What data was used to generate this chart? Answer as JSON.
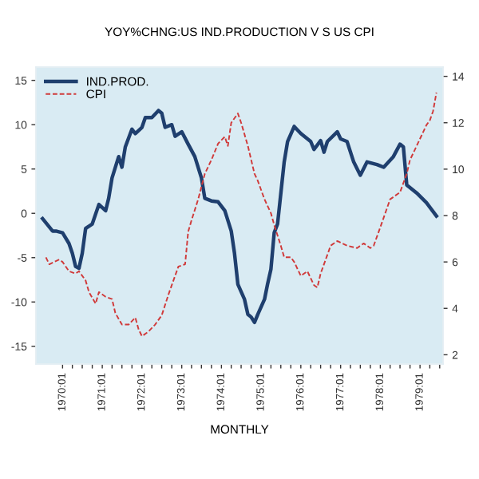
{
  "chart_data": {
    "type": "line",
    "title": "YOY%CHNG:US IND.PRODUCTION V S US CPI",
    "xlabel": "MONTHLY",
    "xlim": [
      "1969-05",
      "1979-08"
    ],
    "xticks": [
      {
        "value": "1970-01",
        "label": "1970:01"
      },
      {
        "value": "1970-04",
        "label": null
      },
      {
        "value": "1970-07",
        "label": null
      },
      {
        "value": "1970-10",
        "label": null
      },
      {
        "value": "1971-01",
        "label": "1971:01"
      },
      {
        "value": "1971-04",
        "label": null
      },
      {
        "value": "1971-07",
        "label": null
      },
      {
        "value": "1971-10",
        "label": null
      },
      {
        "value": "1972-01",
        "label": "1972:01"
      },
      {
        "value": "1972-04",
        "label": null
      },
      {
        "value": "1972-07",
        "label": null
      },
      {
        "value": "1972-10",
        "label": null
      },
      {
        "value": "1973-01",
        "label": "1973:01"
      },
      {
        "value": "1973-04",
        "label": null
      },
      {
        "value": "1973-07",
        "label": null
      },
      {
        "value": "1973-10",
        "label": null
      },
      {
        "value": "1974-01",
        "label": "1974:01"
      },
      {
        "value": "1974-04",
        "label": null
      },
      {
        "value": "1974-07",
        "label": null
      },
      {
        "value": "1974-10",
        "label": null
      },
      {
        "value": "1975-01",
        "label": "1975:01"
      },
      {
        "value": "1975-04",
        "label": null
      },
      {
        "value": "1975-07",
        "label": null
      },
      {
        "value": "1975-10",
        "label": null
      },
      {
        "value": "1976-01",
        "label": "1976:01"
      },
      {
        "value": "1976-04",
        "label": null
      },
      {
        "value": "1976-07",
        "label": null
      },
      {
        "value": "1976-10",
        "label": null
      },
      {
        "value": "1977-01",
        "label": "1977:01"
      },
      {
        "value": "1977-04",
        "label": null
      },
      {
        "value": "1977-07",
        "label": null
      },
      {
        "value": "1977-10",
        "label": null
      },
      {
        "value": "1978-01",
        "label": "1978:01"
      },
      {
        "value": "1978-04",
        "label": null
      },
      {
        "value": "1978-07",
        "label": null
      },
      {
        "value": "1978-10",
        "label": null
      },
      {
        "value": "1979-01",
        "label": "1979:01"
      },
      {
        "value": "1979-04",
        "label": null
      },
      {
        "value": "1979-07",
        "label": null
      }
    ],
    "ylim": [
      -17,
      16.5
    ],
    "yticks": [
      -15,
      -10,
      -5,
      0,
      5,
      10,
      15
    ],
    "y2lim": [
      1.6,
      14.4
    ],
    "y2ticks": [
      2,
      4,
      6,
      8,
      10,
      12,
      14
    ],
    "grid": false,
    "legend": "top left",
    "series": [
      {
        "name": "IND.PROD.",
        "color": "#1f3f6e",
        "line_style": "solid",
        "x": [
          "1969-07",
          "1969-10",
          "1969-11",
          "1970-01",
          "1970-03",
          "1970-04",
          "1970-05",
          "1970-06",
          "1970-07",
          "1970-08",
          "1970-10",
          "1970-12",
          "1971-02",
          "1971-03",
          "1971-04",
          "1971-06",
          "1971-07",
          "1971-08",
          "1971-10",
          "1971-11",
          "1972-01",
          "1972-02",
          "1972-04",
          "1972-06",
          "1972-07",
          "1972-08",
          "1972-10",
          "1972-11",
          "1973-01",
          "1973-03",
          "1973-05",
          "1973-07",
          "1973-08",
          "1973-10",
          "1973-12",
          "1974-02",
          "1974-04",
          "1974-05",
          "1974-06",
          "1974-08",
          "1974-09",
          "1974-10",
          "1974-11",
          "1974-12",
          "1975-02",
          "1975-03",
          "1975-04",
          "1975-05",
          "1975-06",
          "1975-08",
          "1975-09",
          "1975-11",
          "1976-01",
          "1976-04",
          "1976-05",
          "1976-07",
          "1976-08",
          "1976-09",
          "1976-12",
          "1977-01",
          "1977-03",
          "1977-05",
          "1977-07",
          "1977-09",
          "1977-12",
          "1978-02",
          "1978-05",
          "1978-07",
          "1978-08",
          "1978-09",
          "1978-12",
          "1979-03",
          "1979-06"
        ],
        "values": [
          -0.6,
          -2.0,
          -2.0,
          -2.2,
          -3.4,
          -4.5,
          -6.0,
          -6.2,
          -4.5,
          -1.7,
          -1.2,
          1.0,
          0.3,
          1.7,
          4.0,
          6.4,
          5.2,
          7.5,
          9.5,
          9.0,
          9.7,
          10.8,
          10.8,
          11.6,
          11.3,
          9.7,
          10.0,
          8.7,
          9.2,
          7.8,
          6.4,
          4.0,
          1.7,
          1.4,
          1.3,
          0.3,
          -2.0,
          -4.5,
          -8.0,
          -9.7,
          -11.4,
          -11.7,
          -12.3,
          -11.4,
          -9.7,
          -8.0,
          -6.3,
          -2.2,
          -1.2,
          5.8,
          8.1,
          9.8,
          9.0,
          8.1,
          7.2,
          8.2,
          6.9,
          8.1,
          9.2,
          8.4,
          8.1,
          5.8,
          4.3,
          5.8,
          5.5,
          5.2,
          6.4,
          7.8,
          7.5,
          3.2,
          2.3,
          1.2,
          -0.3
        ]
      },
      {
        "name": "CPI",
        "color": "#d03a3a",
        "line_style": "dashed",
        "axis": "y2",
        "x": [
          "1969-08",
          "1969-09",
          "1969-12",
          "1970-01",
          "1970-03",
          "1970-05",
          "1970-06",
          "1970-08",
          "1970-09",
          "1970-11",
          "1970-12",
          "1971-02",
          "1971-04",
          "1971-05",
          "1971-07",
          "1971-09",
          "1971-11",
          "1971-12",
          "1972-01",
          "1972-03",
          "1972-05",
          "1972-07",
          "1972-09",
          "1972-12",
          "1973-02",
          "1973-03",
          "1973-04",
          "1973-06",
          "1973-08",
          "1973-10",
          "1973-12",
          "1974-02",
          "1974-03",
          "1974-04",
          "1974-06",
          "1974-07",
          "1974-09",
          "1974-11",
          "1974-12",
          "1975-02",
          "1975-04",
          "1975-05",
          "1975-07",
          "1975-08",
          "1975-10",
          "1975-11",
          "1976-01",
          "1976-03",
          "1976-05",
          "1976-06",
          "1976-07",
          "1976-10",
          "1976-12",
          "1977-03",
          "1977-06",
          "1977-08",
          "1977-10",
          "1977-11",
          "1978-01",
          "1978-04",
          "1978-07",
          "1978-09",
          "1978-10",
          "1978-12",
          "1979-03",
          "1979-04",
          "1979-05",
          "1979-06"
        ],
        "values": [
          6.2,
          5.9,
          6.1,
          6.0,
          5.6,
          5.5,
          5.6,
          5.2,
          4.7,
          4.2,
          4.7,
          4.5,
          4.4,
          3.8,
          3.3,
          3.3,
          3.6,
          3.1,
          2.8,
          3.0,
          3.3,
          3.7,
          4.6,
          5.8,
          5.9,
          7.3,
          7.8,
          8.7,
          9.8,
          10.4,
          11.1,
          11.4,
          11.0,
          12.0,
          12.4,
          12.0,
          11.0,
          9.8,
          9.5,
          8.7,
          8.1,
          7.6,
          6.7,
          6.2,
          6.2,
          6.0,
          5.4,
          5.6,
          5.0,
          4.9,
          5.5,
          6.7,
          6.9,
          6.7,
          6.6,
          6.8,
          6.6,
          6.7,
          7.5,
          8.7,
          9.0,
          9.8,
          10.4,
          11.0,
          11.9,
          12.1,
          12.5,
          13.3
        ]
      }
    ]
  }
}
